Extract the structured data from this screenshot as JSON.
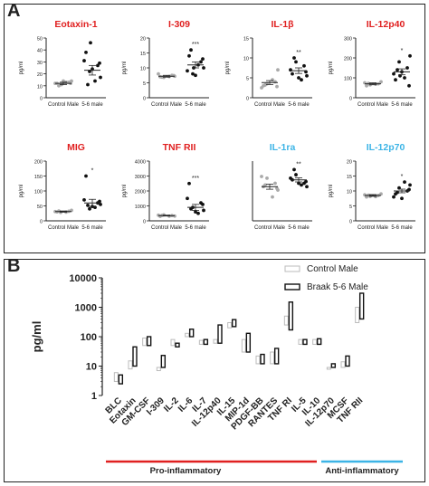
{
  "panel_a": {
    "label": "A",
    "colors": {
      "pro": "#e02020",
      "anti": "#3cb4e6"
    },
    "chart_data": [
      {
        "type": "scatter",
        "title": "Eotaxin-1",
        "title_class": "pro",
        "ylabel": "pg/ml",
        "ylim": [
          0,
          50
        ],
        "yticks": [
          0,
          10,
          20,
          30,
          40,
          50
        ],
        "categories": [
          "Control Male",
          "5-6 male"
        ],
        "significance": "",
        "series": [
          {
            "name": "Control Male",
            "values": [
              12,
              13,
              11,
              14,
              12,
              13,
              10,
              12,
              14,
              11
            ],
            "mean": 12,
            "sem": 1
          },
          {
            "name": "5-6 male",
            "values": [
              38,
              27,
              22,
              17,
              31,
              14,
              11,
              29,
              24,
              46
            ],
            "mean": 23,
            "sem": 4
          }
        ]
      },
      {
        "type": "scatter",
        "title": "I-309",
        "title_class": "pro",
        "ylabel": "pg/ml",
        "ylim": [
          0,
          20
        ],
        "yticks": [
          0,
          5,
          10,
          15,
          20
        ],
        "categories": [
          "Control Male",
          "5-6 male"
        ],
        "significance": "***",
        "series": [
          {
            "name": "Control Male",
            "values": [
              7,
              7.5,
              6.8,
              7.2,
              8,
              7.1,
              6.9,
              7.4
            ],
            "mean": 7.2,
            "sem": 0.3
          },
          {
            "name": "5-6 male",
            "values": [
              14,
              12,
              8,
              10,
              9,
              11,
              16,
              13,
              7.5,
              10
            ],
            "mean": 11,
            "sem": 1
          }
        ]
      },
      {
        "type": "scatter",
        "title": "IL-1β",
        "title_class": "pro",
        "ylabel": "pg/ml",
        "ylim": [
          0,
          15
        ],
        "yticks": [
          0,
          5,
          10,
          15
        ],
        "categories": [
          "Control Male",
          "5-6 male"
        ],
        "significance": "**",
        "series": [
          {
            "name": "Control Male",
            "values": [
              3,
              4,
              3.5,
              7,
              2.5,
              4.5,
              3.2,
              2.8
            ],
            "mean": 3.8,
            "sem": 0.5
          },
          {
            "name": "5-6 male",
            "values": [
              6,
              8,
              9,
              5.5,
              7,
              4.5,
              10,
              6.5,
              5
            ],
            "mean": 6.8,
            "sem": 0.7
          }
        ]
      },
      {
        "type": "scatter",
        "title": "IL-12p40",
        "title_class": "pro",
        "ylabel": "pg/ml",
        "ylim": [
          0,
          300
        ],
        "yticks": [
          0,
          100,
          200,
          300
        ],
        "categories": [
          "Control Male",
          "5-6 male"
        ],
        "significance": "*",
        "series": [
          {
            "name": "Control Male",
            "values": [
              60,
              70,
              65,
              80,
              75,
              68,
              72
            ],
            "mean": 70,
            "sem": 5
          },
          {
            "name": "5-6 male",
            "values": [
              90,
              150,
              180,
              210,
              120,
              100,
              140,
              60,
              130,
              110
            ],
            "mean": 130,
            "sem": 15
          }
        ]
      },
      {
        "type": "scatter",
        "title": "MIG",
        "title_class": "pro",
        "ylabel": "pg/ml",
        "ylim": [
          0,
          200
        ],
        "yticks": [
          0,
          50,
          100,
          150,
          200
        ],
        "categories": [
          "Control Male",
          "5-6 male"
        ],
        "significance": "*",
        "series": [
          {
            "name": "Control Male",
            "values": [
              30,
              32,
              28,
              35,
              31,
              29,
              33
            ],
            "mean": 31,
            "sem": 2
          },
          {
            "name": "5-6 male",
            "values": [
              150,
              60,
              40,
              55,
              70,
              45,
              52,
              65,
              48
            ],
            "mean": 60,
            "sem": 12
          }
        ]
      },
      {
        "type": "scatter",
        "title": "TNF RII",
        "title_class": "pro",
        "ylabel": "pg/ml",
        "ylim": [
          0,
          4000
        ],
        "yticks": [
          0,
          1000,
          2000,
          3000,
          4000
        ],
        "categories": [
          "Control Male",
          "5-6 male"
        ],
        "significance": "***",
        "series": [
          {
            "name": "Control Male",
            "values": [
              300,
              350,
              400,
              320,
              380,
              310,
              360
            ],
            "mean": 350,
            "sem": 30
          },
          {
            "name": "5-6 male",
            "values": [
              2500,
              1200,
              900,
              700,
              1500,
              500,
              800,
              1100,
              600
            ],
            "mean": 900,
            "sem": 200
          }
        ]
      },
      {
        "type": "scatter",
        "title": "IL-1ra",
        "title_class": "anti",
        "ylabel": "",
        "ylim": [
          0,
          35
        ],
        "yticks": [],
        "categories": [
          "Control Male",
          "5-6 male"
        ],
        "significance": "**",
        "series": [
          {
            "name": "Control Male",
            "values": [
              20,
              22,
              25,
              18,
              26,
              14,
              21,
              19
            ],
            "mean": 20,
            "sem": 1.5
          },
          {
            "name": "5-6 male",
            "values": [
              24,
              22,
              27,
              20,
              25,
              21,
              30,
              23,
              22
            ],
            "mean": 24,
            "sem": 1.2
          }
        ]
      },
      {
        "type": "scatter",
        "title": "IL-12p70",
        "title_class": "anti",
        "ylabel": "pg/ml",
        "ylim": [
          0,
          20
        ],
        "yticks": [
          0,
          5,
          10,
          15,
          20
        ],
        "categories": [
          "Control Male",
          "5-6 male"
        ],
        "significance": "*",
        "series": [
          {
            "name": "Control Male",
            "values": [
              8,
              8.5,
              8.2,
              9,
              8.7,
              8.1,
              8.6
            ],
            "mean": 8.5,
            "sem": 0.3
          },
          {
            "name": "5-6 male",
            "values": [
              9,
              10,
              11,
              12,
              8,
              13,
              9.5,
              10.5,
              7.5
            ],
            "mean": 10,
            "sem": 0.6
          }
        ]
      }
    ]
  },
  "panel_b": {
    "label": "B",
    "chart_data": {
      "type": "bar",
      "ylabel": "pg/ml",
      "yscale": "log",
      "ylim": [
        1,
        10000
      ],
      "yticks": [
        1,
        10,
        100,
        1000,
        10000
      ],
      "categories": [
        "BLC",
        "Eotaxin",
        "GM-CSF",
        "I-309",
        "IL-2",
        "IL-6",
        "IL-7",
        "IL-12p40",
        "IL-15",
        "MIP-1d",
        "PDGF-BB",
        "RANTES",
        "TNF RI",
        "IL-5",
        "IL-10",
        "IL-12p70",
        "MCSF",
        "TNF RII"
      ],
      "series": [
        {
          "name": "Control Male",
          "ranges": [
            [
              3,
              6
            ],
            [
              8,
              15
            ],
            [
              50,
              90
            ],
            [
              7,
              9
            ],
            [
              50,
              80
            ],
            [
              100,
              130
            ],
            [
              55,
              75
            ],
            [
              60,
              80
            ],
            [
              200,
              300
            ],
            [
              30,
              80
            ],
            [
              12,
              22
            ],
            [
              12,
              30
            ],
            [
              250,
              500
            ],
            [
              55,
              80
            ],
            [
              55,
              80
            ],
            [
              8,
              9
            ],
            [
              9,
              14
            ],
            [
              300,
              1000
            ]
          ]
        },
        {
          "name": "Braak 5-6 Male",
          "ranges": [
            [
              2.5,
              5
            ],
            [
              10,
              45
            ],
            [
              50,
              100
            ],
            [
              9,
              23
            ],
            [
              45,
              60
            ],
            [
              100,
              180
            ],
            [
              55,
              80
            ],
            [
              60,
              250
            ],
            [
              220,
              380
            ],
            [
              30,
              130
            ],
            [
              12,
              25
            ],
            [
              12,
              40
            ],
            [
              170,
              1500
            ],
            [
              55,
              80
            ],
            [
              55,
              85
            ],
            [
              9,
              12
            ],
            [
              10,
              22
            ],
            [
              400,
              3000
            ]
          ]
        }
      ],
      "groups": [
        {
          "label": "Pro-inflammatory",
          "color": "#e02020"
        },
        {
          "label": "Anti-inflammatory",
          "color": "#3cb4e6"
        }
      ]
    }
  }
}
